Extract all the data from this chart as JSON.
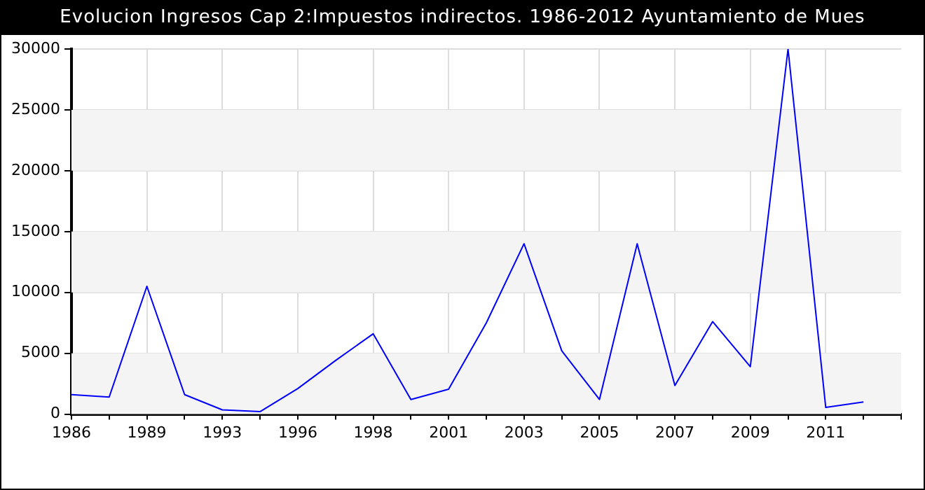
{
  "chart_data": {
    "type": "line",
    "title": "Evolucion Ingresos Cap 2:Impuestos indirectos. 1986-2012 Ayuntamiento de Mues",
    "categories": [
      "1986",
      null,
      "1989",
      null,
      "1993",
      null,
      "1996",
      null,
      "1998",
      null,
      "2001",
      null,
      "2003",
      null,
      "2005",
      null,
      "2007",
      null,
      "2009",
      null,
      "2011",
      null,
      null
    ],
    "series": [
      {
        "color": "#0000ff",
        "values": [
          1600,
          1400,
          10500,
          1600,
          350,
          200,
          2100,
          4400,
          6600,
          1200,
          2050,
          7500,
          14000,
          5200,
          1200,
          14000,
          2350,
          7600,
          3900,
          30000,
          550,
          1000,
          null
        ]
      }
    ],
    "ylim": [
      0,
      30000
    ],
    "yticks": [
      0,
      5000,
      10000,
      15000,
      20000,
      25000,
      30000
    ],
    "grid": true,
    "legend": false,
    "marker": "none",
    "line_style": "solid"
  }
}
